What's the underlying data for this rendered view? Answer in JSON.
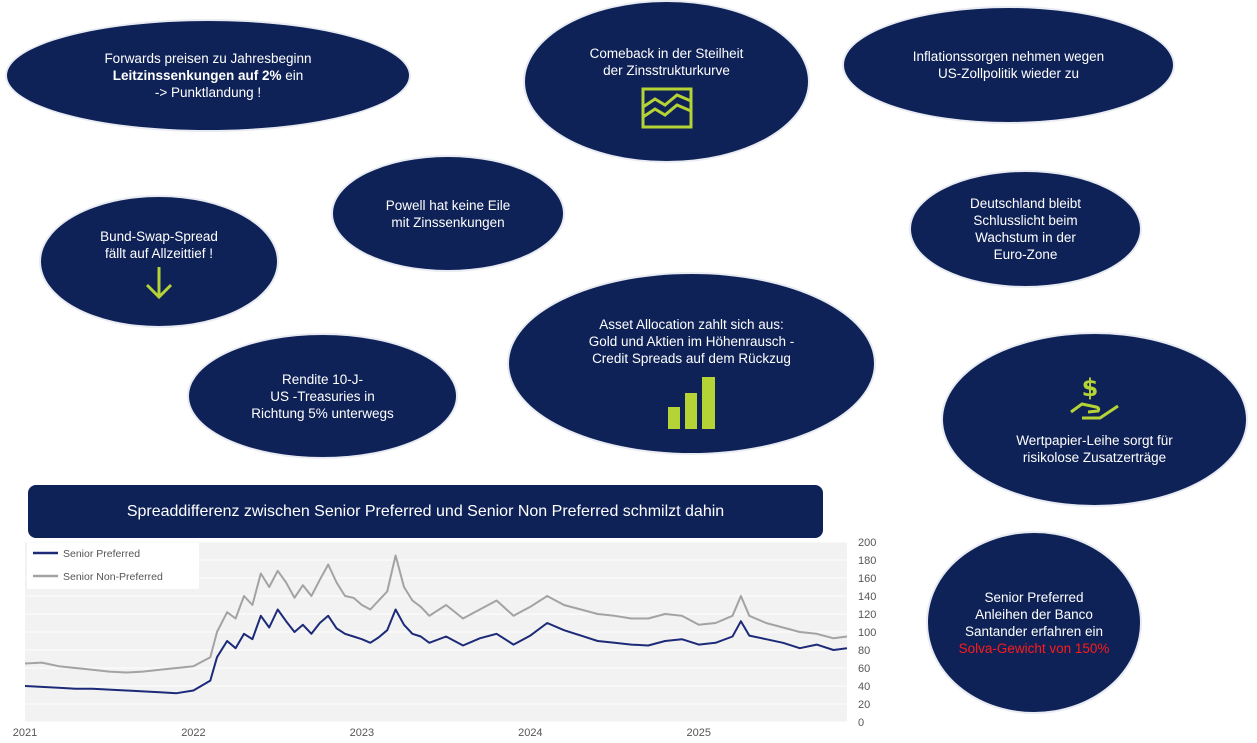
{
  "bubbles": {
    "forwards": {
      "line1": "Forwards preisen zu Jahresbeginn",
      "line2a": "Leitzinssenkungen auf 2%",
      "line2b": " ein",
      "line3": "-> Punktlandung !"
    },
    "comeback": {
      "line1": "Comeback in der Steilheit",
      "line2": "der Zinsstrukturkurve"
    },
    "inflation": {
      "line1": "Inflationssorgen nehmen wegen",
      "line2": "US-Zollpolitik wieder zu"
    },
    "powell": {
      "line1": "Powell hat keine Eile",
      "line2": "mit Zinssenkungen"
    },
    "deutschland": {
      "line1": "Deutschland bleibt",
      "line2": "Schlusslicht beim",
      "line3": "Wachstum in der",
      "line4": "Euro-Zone"
    },
    "bund": {
      "line1": "Bund-Swap-Spread",
      "line2": "fällt auf Allzeittief !"
    },
    "asset": {
      "line1": "Asset Allocation zahlt sich aus:",
      "line2": "Gold und Aktien im Höhenrausch -",
      "line3": "Credit Spreads auf dem Rückzug"
    },
    "rendite": {
      "line1": "Rendite 10-J-",
      "line2": "US -Treasuries in",
      "line3": "Richtung 5% unterwegs"
    },
    "wertpapier": {
      "line1": "Wertpapier-Leihe sorgt für",
      "line2": "risikolose Zusatzerträge"
    },
    "santander": {
      "line1": "Senior Preferred",
      "line2": "Anleihen der Banco",
      "line3": "Santander erfahren ein",
      "line4": "Solva-Gewicht von 150%"
    }
  },
  "icons": {
    "comeback": "yield-curve-icon",
    "bund": "arrow-down-icon",
    "asset": "bar-chart-icon",
    "wertpapier": "dollar-hand-icon"
  },
  "banner": {
    "text": "Spreaddifferenz zwischen Senior Preferred und Senior Non Preferred schmilzt dahin"
  },
  "colors": {
    "navy": "#0f2257",
    "accent_green": "#b5d334",
    "highlight_red": "#ff1a1a",
    "series_senior_preferred": "#1c2a78",
    "series_senior_non_preferred": "#a3a3a3"
  },
  "chart_data": {
    "type": "line",
    "title": "",
    "xlabel": "",
    "ylabel": "",
    "ylim": [
      0,
      200
    ],
    "yticks": [
      0,
      20,
      40,
      60,
      80,
      100,
      120,
      140,
      160,
      180,
      200
    ],
    "xlim": [
      2021.0,
      2025.88
    ],
    "xticks": [
      "2021",
      "2022",
      "2023",
      "2024",
      "2025"
    ],
    "grid": true,
    "legend_position": "top-left",
    "series": [
      {
        "name": "Senior Preferred",
        "color": "#1c2a78",
        "x": [
          2021.0,
          2021.1,
          2021.2,
          2021.3,
          2021.4,
          2021.5,
          2021.6,
          2021.7,
          2021.8,
          2021.9,
          2022.0,
          2022.1,
          2022.14,
          2022.2,
          2022.25,
          2022.3,
          2022.35,
          2022.4,
          2022.45,
          2022.5,
          2022.55,
          2022.6,
          2022.65,
          2022.7,
          2022.75,
          2022.8,
          2022.85,
          2022.9,
          2022.95,
          2023.0,
          2023.05,
          2023.1,
          2023.15,
          2023.2,
          2023.25,
          2023.3,
          2023.35,
          2023.4,
          2023.5,
          2023.6,
          2023.7,
          2023.8,
          2023.9,
          2024.0,
          2024.1,
          2024.2,
          2024.3,
          2024.4,
          2024.5,
          2024.6,
          2024.7,
          2024.8,
          2024.9,
          2025.0,
          2025.1,
          2025.2,
          2025.25,
          2025.3,
          2025.4,
          2025.5,
          2025.6,
          2025.7,
          2025.8,
          2025.88
        ],
        "values": [
          40,
          39,
          38,
          37,
          37,
          36,
          35,
          34,
          33,
          32,
          35,
          46,
          72,
          90,
          82,
          98,
          92,
          118,
          105,
          125,
          112,
          100,
          108,
          98,
          110,
          118,
          104,
          98,
          95,
          92,
          88,
          94,
          102,
          125,
          108,
          98,
          95,
          88,
          95,
          85,
          93,
          98,
          86,
          96,
          110,
          102,
          96,
          90,
          88,
          86,
          85,
          90,
          92,
          86,
          88,
          95,
          112,
          96,
          92,
          88,
          82,
          86,
          80,
          82
        ]
      },
      {
        "name": "Senior Non-Preferred",
        "color": "#a3a3a3",
        "x": [
          2021.0,
          2021.1,
          2021.2,
          2021.3,
          2021.4,
          2021.5,
          2021.6,
          2021.7,
          2021.8,
          2021.9,
          2022.0,
          2022.1,
          2022.14,
          2022.2,
          2022.25,
          2022.3,
          2022.35,
          2022.4,
          2022.45,
          2022.5,
          2022.55,
          2022.6,
          2022.65,
          2022.7,
          2022.75,
          2022.8,
          2022.85,
          2022.9,
          2022.95,
          2023.0,
          2023.05,
          2023.1,
          2023.15,
          2023.2,
          2023.25,
          2023.3,
          2023.35,
          2023.4,
          2023.5,
          2023.6,
          2023.7,
          2023.8,
          2023.9,
          2024.0,
          2024.1,
          2024.2,
          2024.3,
          2024.4,
          2024.5,
          2024.6,
          2024.7,
          2024.8,
          2024.9,
          2025.0,
          2025.1,
          2025.2,
          2025.25,
          2025.3,
          2025.4,
          2025.5,
          2025.6,
          2025.7,
          2025.8,
          2025.88
        ],
        "values": [
          65,
          66,
          62,
          60,
          58,
          56,
          55,
          56,
          58,
          60,
          62,
          72,
          100,
          122,
          115,
          140,
          130,
          165,
          150,
          168,
          155,
          138,
          152,
          140,
          158,
          175,
          155,
          140,
          138,
          130,
          125,
          135,
          145,
          185,
          150,
          135,
          128,
          118,
          130,
          115,
          125,
          135,
          118,
          128,
          140,
          130,
          125,
          120,
          118,
          115,
          115,
          120,
          118,
          108,
          110,
          118,
          140,
          118,
          110,
          105,
          100,
          98,
          93,
          95
        ]
      }
    ]
  }
}
